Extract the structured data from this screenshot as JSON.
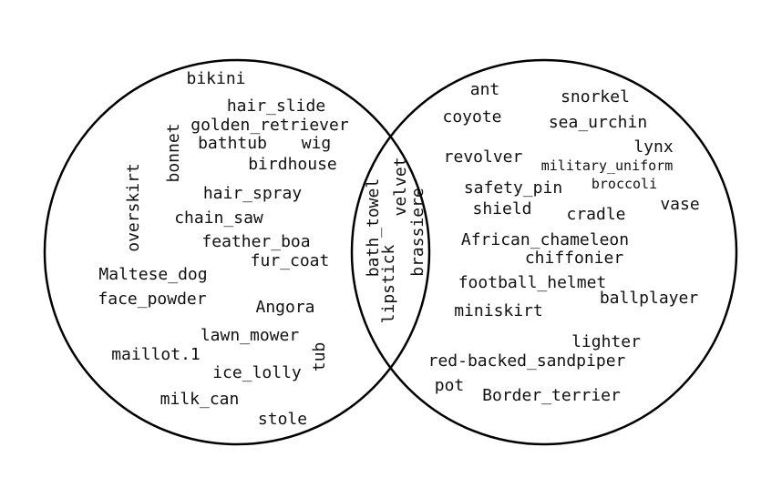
{
  "diagram": {
    "type": "venn",
    "colors": {
      "outline": "#000000",
      "text": "#111111",
      "background": "#ffffff"
    },
    "left_only": [
      "bikini",
      "hair_slide",
      "golden_retriever",
      "bonnet",
      "bathtub",
      "wig",
      "birdhouse",
      "overskirt",
      "hair_spray",
      "chain_saw",
      "feather_boa",
      "fur_coat",
      "Maltese_dog",
      "face_powder",
      "Angora",
      "lawn_mower",
      "maillot.1",
      "tub",
      "ice_lolly",
      "milk_can",
      "stole"
    ],
    "intersection": [
      "bath_towel",
      "velvet",
      "brassiere",
      "lipstick"
    ],
    "right_only": [
      "ant",
      "snorkel",
      "coyote",
      "sea_urchin",
      "lynx",
      "revolver",
      "military_uniform",
      "broccoli",
      "safety_pin",
      "vase",
      "shield",
      "cradle",
      "African_chameleon",
      "chiffonier",
      "football_helmet",
      "ballplayer",
      "miniskirt",
      "lighter",
      "red-backed_sandpiper",
      "pot",
      "Border_terrier"
    ]
  }
}
